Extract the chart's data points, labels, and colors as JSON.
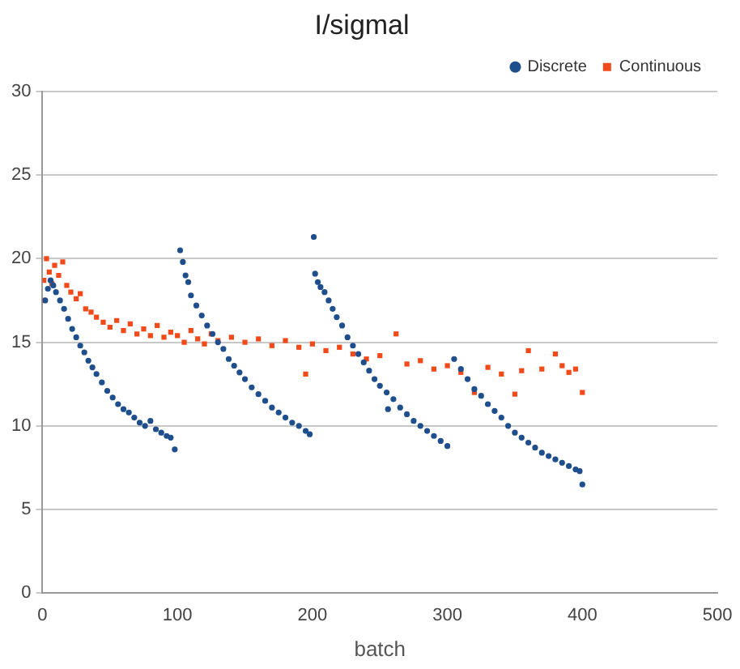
{
  "chart_data": {
    "type": "scatter",
    "title": "I/sigmal",
    "xlabel": "batch",
    "xlim": [
      0,
      500
    ],
    "xticks": [
      0,
      100,
      200,
      300,
      400,
      500
    ],
    "ylim": [
      0,
      30
    ],
    "yticks": [
      0,
      5,
      10,
      15,
      20,
      25,
      30
    ],
    "grid": "y",
    "legend": "top right",
    "series": [
      {
        "name": "Discrete",
        "color": "#1f4e8c",
        "marker": "circle",
        "x": [
          2,
          4,
          6,
          8,
          10,
          13,
          16,
          19,
          22,
          25,
          28,
          31,
          34,
          37,
          40,
          44,
          48,
          52,
          56,
          60,
          64,
          68,
          72,
          76,
          80,
          84,
          88,
          92,
          95,
          98,
          102,
          104,
          106,
          108,
          110,
          114,
          118,
          122,
          126,
          130,
          134,
          138,
          142,
          146,
          150,
          155,
          160,
          165,
          170,
          175,
          180,
          185,
          190,
          195,
          198,
          201,
          202,
          204,
          206,
          209,
          212,
          215,
          218,
          222,
          226,
          230,
          234,
          238,
          242,
          246,
          250,
          255,
          256,
          260,
          265,
          270,
          275,
          280,
          285,
          290,
          295,
          300,
          305,
          310,
          315,
          320,
          325,
          330,
          335,
          340,
          345,
          350,
          355,
          360,
          365,
          370,
          375,
          380,
          385,
          390,
          395,
          398,
          400
        ],
        "values": [
          17.5,
          18.2,
          18.7,
          18.4,
          18.0,
          17.5,
          17.0,
          16.4,
          15.8,
          15.3,
          14.8,
          14.4,
          13.9,
          13.5,
          13.1,
          12.6,
          12.1,
          11.7,
          11.3,
          11.0,
          10.8,
          10.5,
          10.2,
          10.0,
          10.3,
          9.8,
          9.6,
          9.4,
          9.3,
          8.6,
          20.5,
          19.8,
          19.0,
          18.6,
          17.8,
          17.2,
          16.6,
          16.0,
          15.5,
          15.0,
          14.6,
          14.0,
          13.6,
          13.2,
          12.8,
          12.3,
          11.9,
          11.5,
          11.1,
          10.8,
          10.5,
          10.2,
          10.0,
          9.7,
          9.5,
          21.3,
          19.1,
          18.6,
          18.3,
          18.0,
          17.5,
          17.0,
          16.5,
          16.0,
          15.3,
          14.8,
          14.3,
          13.8,
          13.3,
          12.8,
          12.4,
          12.0,
          11.0,
          11.6,
          11.1,
          10.7,
          10.3,
          10.0,
          9.7,
          9.4,
          9.1,
          8.8,
          14.0,
          13.4,
          12.8,
          12.2,
          11.8,
          11.3,
          10.9,
          10.5,
          10.0,
          9.6,
          9.3,
          9.0,
          8.7,
          8.4,
          8.2,
          8.0,
          7.8,
          7.6,
          7.4,
          7.3,
          6.5
        ]
      },
      {
        "name": "Continuous",
        "color": "#f04a1a",
        "marker": "square",
        "x": [
          0,
          1,
          3,
          5,
          7,
          9,
          12,
          15,
          18,
          21,
          25,
          28,
          32,
          36,
          40,
          45,
          50,
          55,
          60,
          65,
          70,
          75,
          80,
          85,
          90,
          95,
          100,
          105,
          110,
          115,
          120,
          125,
          130,
          140,
          150,
          160,
          170,
          180,
          190,
          195,
          200,
          210,
          220,
          230,
          240,
          250,
          262,
          270,
          280,
          290,
          300,
          310,
          320,
          330,
          340,
          350,
          355,
          360,
          370,
          380,
          385,
          390,
          395,
          400
        ],
        "values": [
          17.5,
          18.7,
          20.0,
          19.2,
          18.5,
          19.6,
          19.0,
          19.8,
          18.4,
          18.0,
          17.6,
          17.9,
          17.0,
          16.8,
          16.5,
          16.2,
          15.9,
          16.3,
          15.7,
          16.1,
          15.5,
          15.8,
          15.4,
          16.0,
          15.3,
          15.6,
          15.4,
          15.0,
          15.7,
          15.2,
          14.9,
          15.5,
          15.1,
          15.3,
          15.0,
          15.2,
          14.8,
          15.1,
          14.7,
          13.1,
          14.9,
          14.5,
          14.7,
          14.3,
          14.0,
          14.2,
          15.5,
          13.7,
          13.9,
          13.4,
          13.6,
          13.2,
          12.0,
          13.5,
          13.1,
          11.9,
          13.3,
          14.5,
          13.4,
          14.3,
          13.6,
          13.2,
          13.4,
          12.0
        ]
      }
    ]
  }
}
